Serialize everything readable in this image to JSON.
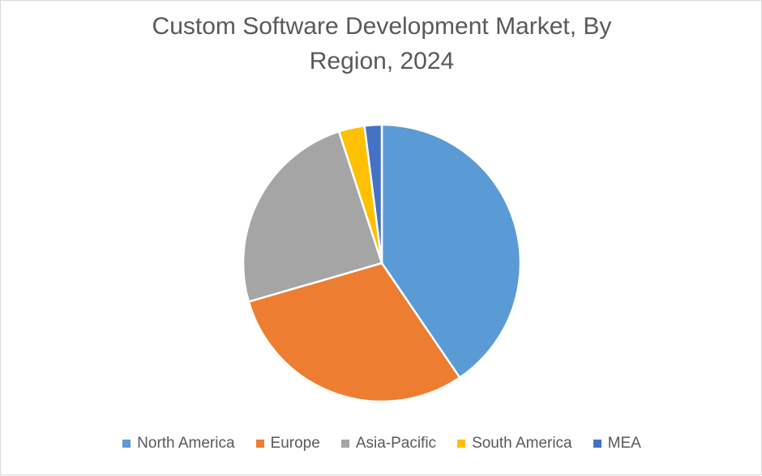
{
  "chart_data": {
    "type": "pie",
    "title_lines": [
      "Custom Software Development Market, By",
      "Region, 2024"
    ],
    "categories": [
      "North America",
      "Europe",
      "Asia-Pacific",
      "South America",
      "MEA"
    ],
    "values": [
      40.5,
      30,
      24.5,
      3,
      2
    ],
    "unit": "%",
    "colors": [
      "#5b9bd5",
      "#ed7d31",
      "#a5a5a5",
      "#ffc000",
      "#4472c4"
    ],
    "start_angle_deg": 0,
    "direction": "clockwise",
    "legend_position": "bottom",
    "slice_border_color": "#ffffff"
  }
}
